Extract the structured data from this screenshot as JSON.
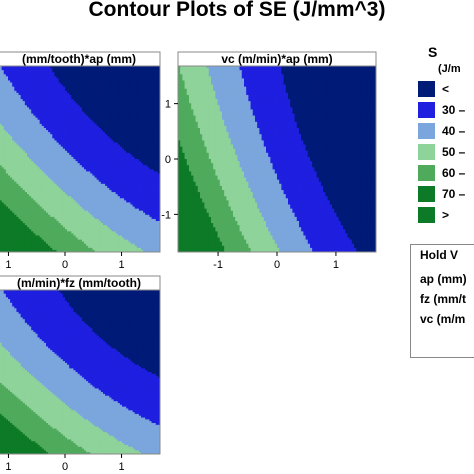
{
  "title": "Contour Plots of SE (J/mm^3)",
  "colors": {
    "band_lt30": "#001a78",
    "band_30_40": "#1f1fe0",
    "band_40_50": "#7aa6dd",
    "band_50_60": "#8ed39a",
    "band_60_70": "#4faa5c",
    "band_gt70": "#0c7a26"
  },
  "legend": {
    "title": "S",
    "unit": "(J/m",
    "entries": [
      {
        "label": "<",
        "color": "#001a78"
      },
      {
        "label": "30  –",
        "color": "#1f1fe0"
      },
      {
        "label": "40  –",
        "color": "#7aa6dd"
      },
      {
        "label": "50  –",
        "color": "#8ed39a"
      },
      {
        "label": "60  –",
        "color": "#4faa5c"
      },
      {
        "label": "70  –",
        "color": "#0c7a26"
      },
      {
        "label": ">",
        "color": "#0c7a26"
      }
    ]
  },
  "hold": {
    "title": "Hold V",
    "rows": [
      "ap (mm)",
      "fz (mm/t",
      "vc (m/m"
    ]
  },
  "chart_data": [
    {
      "type": "heatmap",
      "title": "(mm/tooth)*ap (mm)",
      "xticks": [
        {
          "value": -1,
          "label": "1"
        },
        {
          "value": 0,
          "label": "0"
        },
        {
          "value": 1,
          "label": "1"
        }
      ],
      "yticks": [],
      "xlim": [
        -1.68,
        1.68
      ],
      "ylim": [
        -1.68,
        1.68
      ],
      "levels": [
        30,
        40,
        50,
        60,
        70
      ],
      "model": {
        "c": 42,
        "x": -12,
        "y": -12,
        "xy": 2,
        "x2": 2,
        "y2": 2
      }
    },
    {
      "type": "heatmap",
      "title": "vc (m/min)*ap (mm)",
      "xticks": [
        {
          "value": -1,
          "label": "-1"
        },
        {
          "value": 0,
          "label": "0"
        },
        {
          "value": 1,
          "label": "1"
        }
      ],
      "yticks": [
        {
          "value": 1,
          "label": "1"
        },
        {
          "value": 0,
          "label": "0"
        },
        {
          "value": -1,
          "label": "-1"
        }
      ],
      "xlim": [
        -1.68,
        1.68
      ],
      "ylim": [
        -1.68,
        1.68
      ],
      "levels": [
        30,
        40,
        50,
        60,
        70
      ],
      "model": {
        "c": 38,
        "x": -16,
        "y": -6,
        "xy": 2,
        "x2": 3,
        "y2": 1
      }
    },
    {
      "type": "heatmap",
      "title": "(m/min)*fz (mm/tooth)",
      "xticks": [
        {
          "value": -1,
          "label": "1"
        },
        {
          "value": 0,
          "label": "0"
        },
        {
          "value": 1,
          "label": "1"
        }
      ],
      "yticks": [],
      "xlim": [
        -1.68,
        1.68
      ],
      "ylim": [
        -1.68,
        1.68
      ],
      "levels": [
        30,
        40,
        50,
        60,
        70
      ],
      "model": {
        "c": 42,
        "x": -11,
        "y": -11,
        "xy": 2,
        "x2": 2,
        "y2": 2
      }
    }
  ]
}
